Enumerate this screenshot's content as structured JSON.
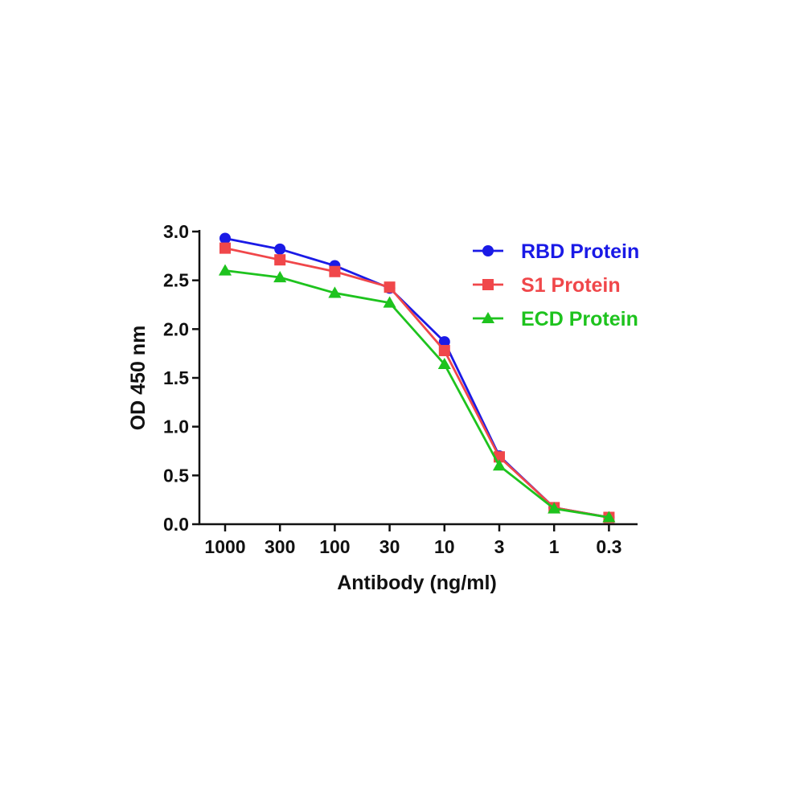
{
  "chart_data": {
    "type": "line",
    "title": "",
    "xlabel": "Antibody (ng/ml)",
    "ylabel": "OD 450 nm",
    "categories": [
      "1000",
      "300",
      "100",
      "30",
      "10",
      "3",
      "1",
      "0.3"
    ],
    "ylim": [
      0,
      3.0
    ],
    "yticks": [
      "0.0",
      "0.5",
      "1.0",
      "1.5",
      "2.0",
      "2.5",
      "3.0"
    ],
    "grid": false,
    "legend_position": "top-right",
    "series": [
      {
        "name": "RBD Protein",
        "color": "#1a1ae6",
        "marker": "circle",
        "values": [
          2.93,
          2.82,
          2.65,
          2.42,
          1.87,
          0.7,
          0.17,
          0.07
        ]
      },
      {
        "name": "S1 Protein",
        "color": "#f0474a",
        "marker": "square",
        "values": [
          2.83,
          2.71,
          2.59,
          2.43,
          1.78,
          0.69,
          0.17,
          0.07
        ]
      },
      {
        "name": "ECD Protein",
        "color": "#1ec31e",
        "marker": "triangle",
        "values": [
          2.6,
          2.53,
          2.37,
          2.27,
          1.64,
          0.6,
          0.16,
          0.07
        ]
      }
    ]
  }
}
